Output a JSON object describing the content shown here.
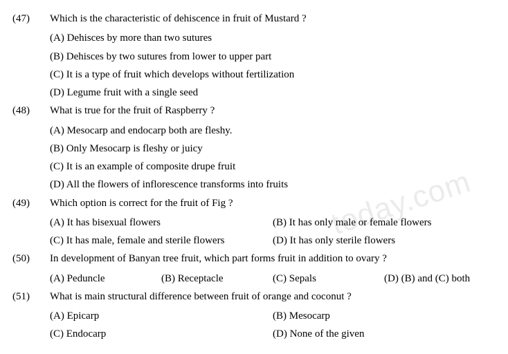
{
  "watermark": "today.com",
  "questions": [
    {
      "num": "(47)",
      "text": "Which is the characteristic of dehiscence in fruit of Mustard ?",
      "layout": "full",
      "opts": {
        "a": "(A) Dehisces by more than two sutures",
        "b": "(B) Dehisces by two sutures from lower to upper part",
        "c": "(C) It is a type of fruit which develops without fertilization",
        "d": "(D) Legume fruit with a single seed"
      }
    },
    {
      "num": "(48)",
      "text": "What is true for the fruit of Raspberry ?",
      "layout": "full",
      "opts": {
        "a": "(A) Mesocarp and endocarp both are fleshy.",
        "b": "(B) Only Mesocarp is fleshy or juicy",
        "c": "(C) It is an example of composite drupe fruit",
        "d": "(D) All the flowers of inflorescence transforms into fruits"
      }
    },
    {
      "num": "(49)",
      "text": "Which option is correct for the fruit of Fig ?",
      "layout": "half",
      "opts": {
        "a": "(A) It has bisexual flowers",
        "b": "(B) It has only male or female flowers",
        "c": "(C) It has male, female and sterile flowers",
        "d": "(D) It has only sterile flowers"
      }
    },
    {
      "num": "(50)",
      "text": "In development of Banyan tree fruit, which part forms fruit in addition to ovary ?",
      "layout": "quarter",
      "opts": {
        "a": "(A) Peduncle",
        "b": "(B) Receptacle",
        "c": "(C) Sepals",
        "d": "(D) (B) and (C) both"
      }
    },
    {
      "num": "(51)",
      "text": "What is main structural difference between fruit of orange and coconut ?",
      "layout": "half",
      "opts": {
        "a": "(A) Epicarp",
        "b": "(B) Mesocarp",
        "c": "(C) Endocarp",
        "d": "(D) None of the given"
      }
    }
  ]
}
